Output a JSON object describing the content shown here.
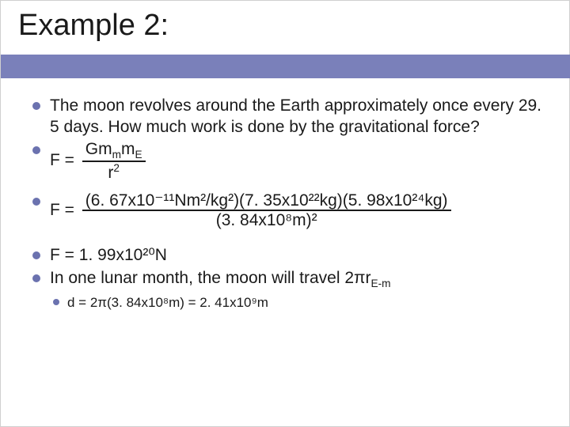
{
  "slide": {
    "title": "Example 2:",
    "bullets": {
      "b1": "The moon revolves around the Earth approximately once every 29. 5 days.  How much work is done by the gravitational force?",
      "b2_prefix": "F = ",
      "b2_num_a": "Gm",
      "b2_num_sub1": "m",
      "b2_num_b": "m",
      "b2_num_sub2": "E",
      "b2_den_a": "r",
      "b2_den_sup": "2",
      "b3_prefix": "F =",
      "b3_num": "(6. 67x10⁻¹¹Nm²/kg²)(7. 35x10²²kg)(5. 98x10²⁴kg)",
      "b3_den": "(3. 84x10⁸m)²",
      "b4": "F = 1. 99x10²⁰N",
      "b5_a": "In one lunar month, the moon will travel 2πr",
      "b5_sub": "E-m",
      "b6": "d = 2π(3. 84x10⁸m) = 2. 41x10⁹m"
    }
  },
  "style": {
    "accent_color": "#7a80ba",
    "bullet_color": "#6b72af",
    "text_color": "#1a1a1a",
    "background": "#ffffff",
    "title_fontsize": 38,
    "body_fontsize": 21,
    "inner_fontsize": 17
  }
}
